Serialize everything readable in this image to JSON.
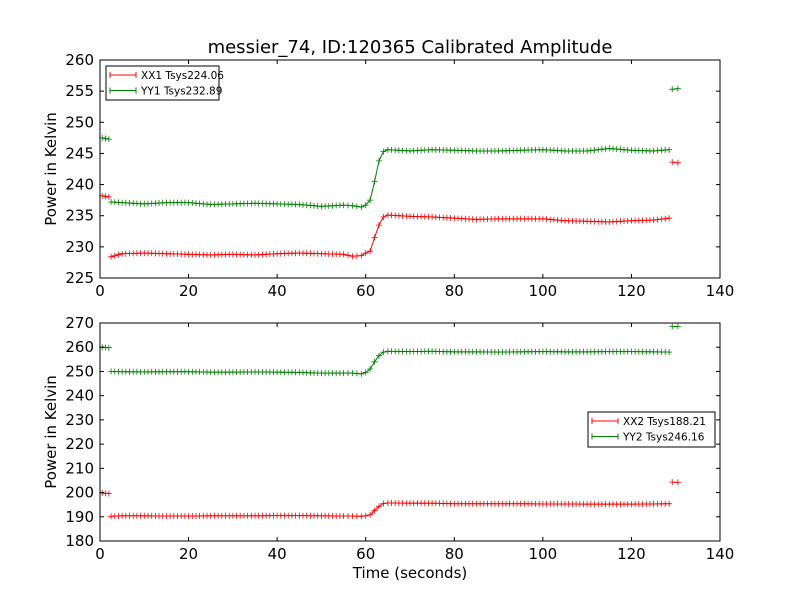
{
  "figure": {
    "title": "messier_74, ID:120365 Calibrated Amplitude",
    "xlabel": "Time (seconds)"
  },
  "chart_data": [
    {
      "type": "line",
      "title": "messier_74, ID:120365 Calibrated Amplitude",
      "xlabel": "",
      "ylabel": "Power in Kelvin",
      "xlim": [
        0,
        140
      ],
      "ylim": [
        225,
        260
      ],
      "xticks": [
        0,
        20,
        40,
        60,
        80,
        100,
        120,
        140
      ],
      "yticks": [
        225,
        230,
        235,
        240,
        245,
        250,
        255,
        260
      ],
      "legend_position": "top-left",
      "series": [
        {
          "name": "XX1 Tsys224.06",
          "color": "#ff0000",
          "segments": [
            {
              "x": [
                0.5,
                2.0
              ],
              "y": [
                238.2,
                238.0
              ]
            },
            {
              "x": [
                2.5,
                5,
                10,
                15,
                20,
                25,
                30,
                35,
                40,
                45,
                50,
                55,
                57,
                59,
                60,
                61,
                62,
                63,
                64,
                65,
                70,
                75,
                80,
                85,
                90,
                95,
                100,
                105,
                110,
                115,
                120,
                125,
                128.5
              ],
              "y": [
                228.4,
                228.9,
                229.0,
                228.9,
                228.8,
                228.7,
                228.8,
                228.7,
                228.9,
                229.0,
                228.9,
                228.8,
                228.5,
                228.6,
                229.0,
                229.3,
                231.5,
                233.5,
                234.8,
                235.1,
                234.9,
                234.8,
                234.6,
                234.4,
                234.5,
                234.5,
                234.5,
                234.2,
                234.1,
                234.0,
                234.2,
                234.3,
                234.6
              ]
            },
            {
              "x": [
                129.2,
                130.5
              ],
              "y": [
                243.6,
                243.5
              ]
            }
          ]
        },
        {
          "name": "YY1 Tsys232.89",
          "color": "#008000",
          "segments": [
            {
              "x": [
                0.5,
                2.0
              ],
              "y": [
                247.5,
                247.3
              ]
            },
            {
              "x": [
                2.5,
                5,
                10,
                15,
                20,
                25,
                30,
                35,
                40,
                45,
                50,
                55,
                57,
                59,
                60,
                61,
                62,
                63,
                64,
                65,
                70,
                75,
                80,
                85,
                90,
                95,
                100,
                105,
                110,
                115,
                120,
                125,
                128.5
              ],
              "y": [
                237.2,
                237.1,
                236.9,
                237.1,
                237.1,
                236.8,
                236.9,
                237.0,
                236.9,
                236.8,
                236.5,
                236.7,
                236.6,
                236.4,
                236.7,
                237.5,
                240.5,
                243.8,
                245.3,
                245.6,
                245.4,
                245.6,
                245.5,
                245.4,
                245.4,
                245.5,
                245.6,
                245.4,
                245.4,
                245.8,
                245.5,
                245.4,
                245.6
              ]
            },
            {
              "x": [
                129.2,
                130.5
              ],
              "y": [
                255.3,
                255.4
              ]
            }
          ]
        }
      ]
    },
    {
      "type": "line",
      "title": "",
      "xlabel": "Time (seconds)",
      "ylabel": "Power in Kelvin",
      "xlim": [
        0,
        140
      ],
      "ylim": [
        180,
        270
      ],
      "xticks": [
        0,
        20,
        40,
        60,
        80,
        100,
        120,
        140
      ],
      "yticks": [
        180,
        190,
        200,
        210,
        220,
        230,
        240,
        250,
        260,
        270
      ],
      "legend_position": "center-right",
      "series": [
        {
          "name": "XX2 Tsys188.21",
          "color": "#ff0000",
          "segments": [
            {
              "x": [
                0.5,
                2.0
              ],
              "y": [
                199.8,
                199.6
              ]
            },
            {
              "x": [
                2.5,
                5,
                10,
                15,
                20,
                25,
                30,
                35,
                40,
                45,
                50,
                55,
                57,
                59,
                60,
                61,
                62,
                63,
                64,
                65,
                70,
                75,
                80,
                85,
                90,
                95,
                100,
                105,
                110,
                115,
                120,
                125,
                128.5
              ],
              "y": [
                190.2,
                190.4,
                190.4,
                190.3,
                190.3,
                190.4,
                190.4,
                190.4,
                190.5,
                190.5,
                190.4,
                190.3,
                190.3,
                190.2,
                190.4,
                190.8,
                192.5,
                194.3,
                195.5,
                195.7,
                195.6,
                195.6,
                195.4,
                195.4,
                195.4,
                195.4,
                195.3,
                195.3,
                195.2,
                195.2,
                195.2,
                195.3,
                195.4
              ]
            },
            {
              "x": [
                129.2,
                130.5
              ],
              "y": [
                204.3,
                204.2
              ]
            }
          ]
        },
        {
          "name": "YY2 Tsys246.16",
          "color": "#008000",
          "segments": [
            {
              "x": [
                0.5,
                2.0
              ],
              "y": [
                260.0,
                259.8
              ]
            },
            {
              "x": [
                2.5,
                5,
                10,
                15,
                20,
                25,
                30,
                35,
                40,
                45,
                50,
                55,
                57,
                59,
                60,
                61,
                62,
                63,
                64,
                65,
                70,
                75,
                80,
                85,
                90,
                95,
                100,
                105,
                110,
                115,
                120,
                125,
                128.5
              ],
              "y": [
                250.0,
                249.9,
                249.8,
                249.9,
                249.9,
                249.7,
                249.7,
                249.8,
                249.7,
                249.6,
                249.3,
                249.3,
                249.3,
                249.0,
                249.6,
                251.0,
                254.0,
                256.5,
                258.0,
                258.3,
                258.2,
                258.3,
                258.1,
                258.1,
                258.0,
                258.1,
                258.2,
                258.1,
                258.1,
                258.2,
                258.2,
                258.1,
                258.0
              ]
            },
            {
              "x": [
                129.2,
                130.5
              ],
              "y": [
                268.5,
                268.6
              ]
            }
          ]
        }
      ]
    }
  ]
}
